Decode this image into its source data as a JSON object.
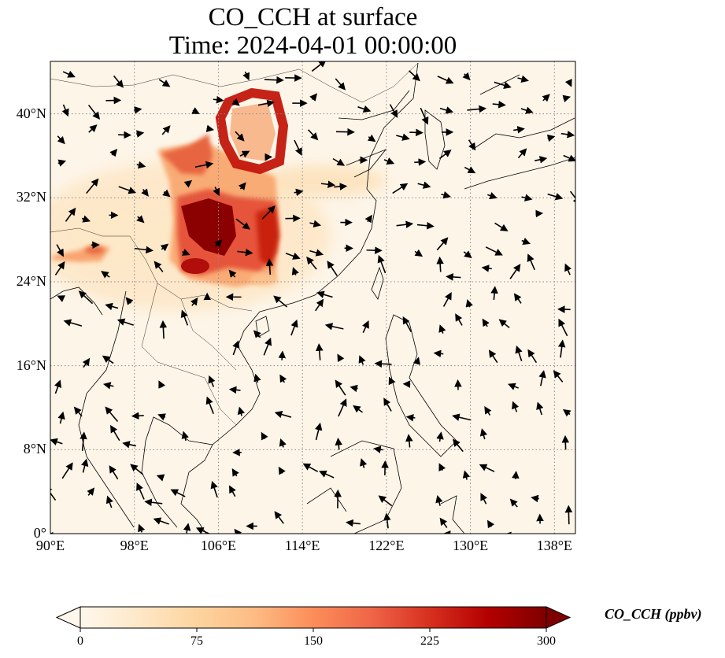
{
  "title": {
    "line1": "CO_CCH at surface",
    "line2": "Time: 2024-04-01 00:00:00"
  },
  "map": {
    "variable": "CO_CCH",
    "level": "surface",
    "extent_lon": [
      90,
      140
    ],
    "extent_lat": [
      0,
      45
    ],
    "lat_ticks": [
      {
        "value": 0,
        "label": "0°"
      },
      {
        "value": 8,
        "label": "8°N"
      },
      {
        "value": 16,
        "label": "16°N"
      },
      {
        "value": 24,
        "label": "24°N"
      },
      {
        "value": 32,
        "label": "32°N"
      },
      {
        "value": 40,
        "label": "40°N"
      }
    ],
    "lon_ticks": [
      {
        "value": 90,
        "label": "90°E"
      },
      {
        "value": 98,
        "label": "98°E"
      },
      {
        "value": 106,
        "label": "106°E"
      },
      {
        "value": 114,
        "label": "114°E"
      },
      {
        "value": 122,
        "label": "122°E"
      },
      {
        "value": 130,
        "label": "130°E"
      },
      {
        "value": 138,
        "label": "138°E"
      }
    ],
    "gridlines": true,
    "plumes": [
      {
        "name": "Sichuan Basin core",
        "lon": 105.5,
        "lat": 29.5,
        "value": 300
      },
      {
        "name": "central China band",
        "lon": 109.5,
        "lat": 28.5,
        "value": 220
      },
      {
        "name": "North China ring",
        "lon": 108.5,
        "lat": 38.5,
        "value": 230
      },
      {
        "name": "northwest arc",
        "lon": 103.5,
        "lat": 35.5,
        "value": 180
      },
      {
        "name": "northeast India",
        "lon": 93.5,
        "lat": 26.5,
        "value": 140
      }
    ]
  },
  "colorbar": {
    "label": "CO_CCH (ppbv)",
    "min": 0,
    "max": 300,
    "ticks": [
      "0",
      "75",
      "150",
      "225",
      "300"
    ],
    "colormap": "OrRd",
    "colors": [
      "#fff7ec",
      "#fee8c8",
      "#fdd49e",
      "#fdbb84",
      "#fc8d59",
      "#ef6548",
      "#d7301f",
      "#b30000",
      "#7f0000"
    ],
    "extend": "both"
  }
}
